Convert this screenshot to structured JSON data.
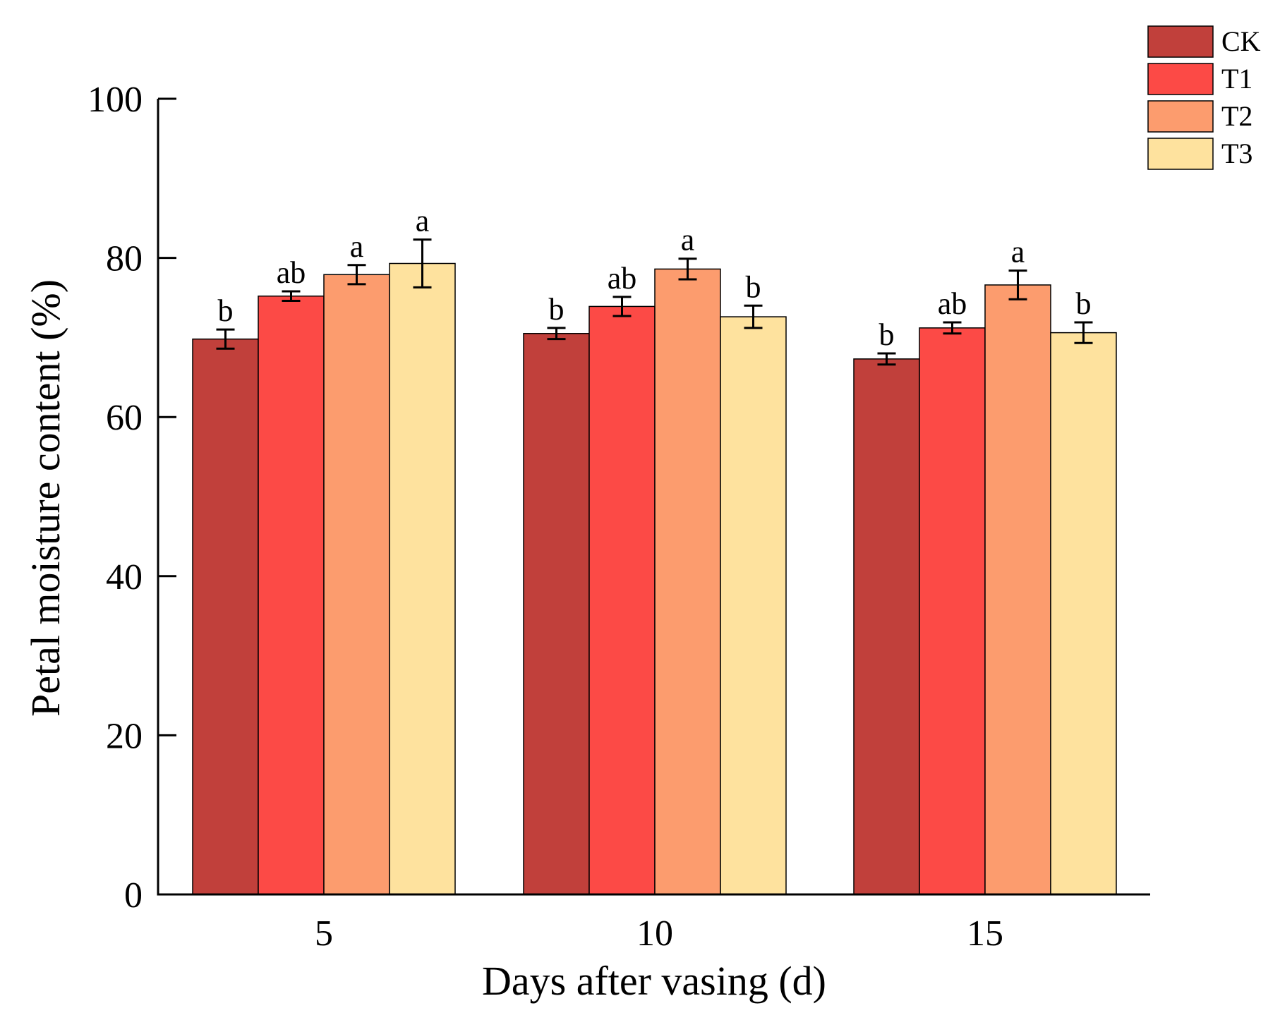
{
  "chart_data": {
    "type": "bar",
    "title": "",
    "xlabel": "Days after vasing (d)",
    "ylabel": "Petal moisture content (%)",
    "ylim": [
      0,
      100
    ],
    "yticks": [
      "0",
      "20",
      "40",
      "60",
      "80",
      "100"
    ],
    "categories": [
      "5",
      "10",
      "15"
    ],
    "legend_position": "top-right",
    "grid": false,
    "series": [
      {
        "name": "CK",
        "color": "#C1403B",
        "values": [
          69.8,
          70.5,
          67.3
        ],
        "errors": [
          1.2,
          0.7,
          0.7
        ],
        "letters": [
          "b",
          "b",
          "b"
        ]
      },
      {
        "name": "T1",
        "color": "#FC4A46",
        "values": [
          75.2,
          73.9,
          71.2
        ],
        "errors": [
          0.6,
          1.2,
          0.7
        ],
        "letters": [
          "ab",
          "ab",
          "ab"
        ]
      },
      {
        "name": "T2",
        "color": "#FC9C6E",
        "values": [
          77.9,
          78.6,
          76.6
        ],
        "errors": [
          1.2,
          1.3,
          1.8
        ],
        "letters": [
          "a",
          "a",
          "a"
        ]
      },
      {
        "name": "T3",
        "color": "#FEE29E",
        "values": [
          79.3,
          72.6,
          70.6
        ],
        "errors": [
          3.0,
          1.4,
          1.3
        ],
        "letters": [
          "a",
          "b",
          "b"
        ]
      }
    ]
  }
}
